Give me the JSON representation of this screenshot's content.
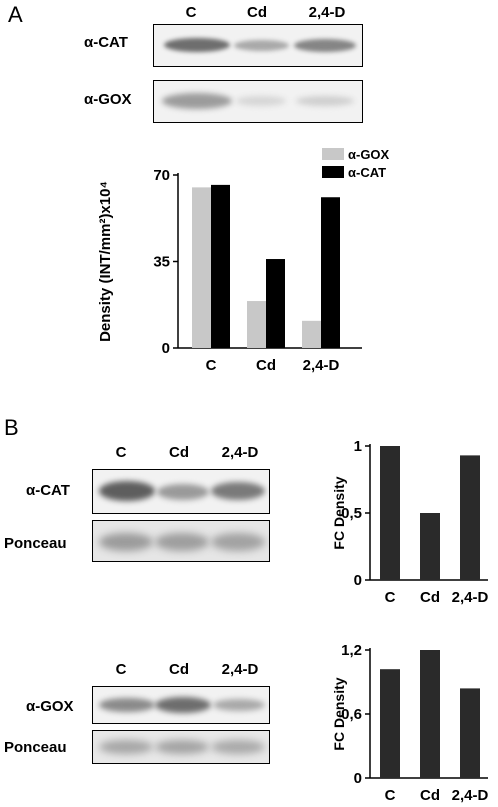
{
  "panels": {
    "a": "A",
    "b": "B"
  },
  "blot_a": {
    "lanes": [
      "C",
      "Cd",
      "2,4-D"
    ],
    "rows": [
      "α-CAT",
      "α-GOX"
    ]
  },
  "blot_b1": {
    "lanes": [
      "C",
      "Cd",
      "2,4-D"
    ],
    "rows": [
      "α-CAT",
      "Ponceau"
    ]
  },
  "blot_b2": {
    "lanes": [
      "C",
      "Cd",
      "2,4-D"
    ],
    "rows": [
      "α-GOX",
      "Ponceau"
    ]
  },
  "chart_data": [
    {
      "type": "bar",
      "categories": [
        "C",
        "Cd",
        "2,4-D"
      ],
      "series": [
        {
          "name": "α-GOX",
          "values": [
            65,
            19,
            11
          ],
          "color": "#c8c8c8"
        },
        {
          "name": "α-CAT",
          "values": [
            66,
            36,
            61
          ],
          "color": "#000000"
        }
      ],
      "title": "",
      "xlabel": "",
      "ylabel": "Density (INT/mm²)x10⁴",
      "ylim": [
        0,
        70
      ],
      "yticks": [
        "0",
        "35",
        "70"
      ],
      "legend": "top-right",
      "grid": false
    },
    {
      "type": "bar",
      "categories": [
        "C",
        "Cd",
        "2,4-D"
      ],
      "series": [
        {
          "values": [
            1.0,
            0.5,
            0.93
          ],
          "color": "#2a2a2a"
        }
      ],
      "title": "",
      "xlabel": "",
      "ylabel": "FC Density",
      "ylim": [
        0,
        1
      ],
      "yticks": [
        "0",
        "0,5",
        "1"
      ],
      "grid": false
    },
    {
      "type": "bar",
      "categories": [
        "C",
        "Cd",
        "2,4-D"
      ],
      "series": [
        {
          "values": [
            1.02,
            1.2,
            0.84
          ],
          "color": "#2a2a2a"
        }
      ],
      "title": "",
      "xlabel": "",
      "ylabel": "FC Density",
      "ylim": [
        0,
        1.2
      ],
      "yticks": [
        "0",
        "0,6",
        "1,2"
      ],
      "grid": false
    }
  ]
}
